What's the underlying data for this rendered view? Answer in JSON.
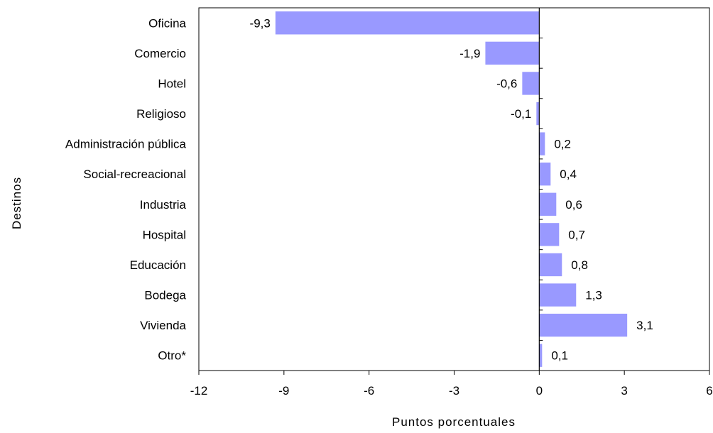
{
  "chart_data": {
    "type": "bar",
    "orientation": "horizontal",
    "title": "",
    "xlabel": "Puntos porcentuales",
    "ylabel": "Destinos",
    "categories": [
      "Oficina",
      "Comercio",
      "Hotel",
      "Religioso",
      "Administración pública",
      "Social-recreacional",
      "Industria",
      "Hospital",
      "Educación",
      "Bodega",
      "Vivienda",
      "Otro*"
    ],
    "values": [
      -9.3,
      -1.9,
      -0.6,
      -0.1,
      0.2,
      0.4,
      0.6,
      0.7,
      0.8,
      1.3,
      3.1,
      0.1
    ],
    "value_labels": [
      "-9,3",
      "-1,9",
      "-0,6",
      "-0,1",
      "0,2",
      "0,4",
      "0,6",
      "0,7",
      "0,8",
      "1,3",
      "3,1",
      "0,1"
    ],
    "xlim": [
      -12,
      6
    ],
    "xticks": [
      -12,
      -9,
      -6,
      -3,
      0,
      3,
      6
    ],
    "xtick_labels": [
      "-12",
      "-9",
      "-6",
      "-3",
      "0",
      "3",
      "6"
    ],
    "grid": false,
    "legend": "none",
    "bar_color": "#9999ff"
  }
}
